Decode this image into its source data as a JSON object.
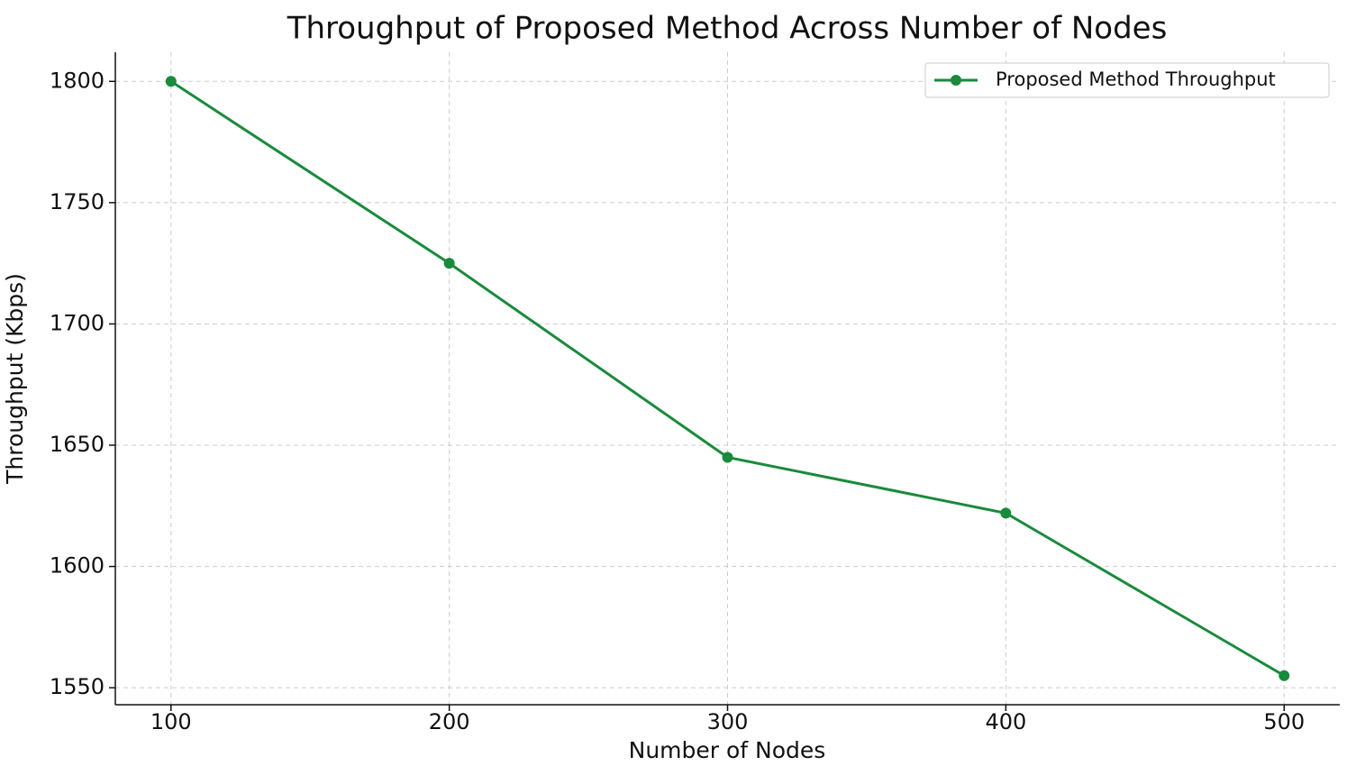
{
  "chart_data": {
    "type": "line",
    "title": "Throughput of Proposed Method Across Number of Nodes",
    "x_label": "Number of Nodes",
    "y_label": "Throughput (Kbps)",
    "x": [
      100,
      200,
      300,
      400,
      500
    ],
    "series": [
      {
        "name": "Proposed Method Throughput",
        "color": "#1a8a3c",
        "values": [
          1800,
          1725,
          1645,
          1622,
          1555
        ]
      }
    ],
    "xlim": [
      80,
      520
    ],
    "ylim": [
      1543,
      1812
    ],
    "xticks": [
      100,
      200,
      300,
      400,
      500
    ],
    "yticks": [
      1550,
      1600,
      1650,
      1700,
      1750,
      1800
    ],
    "grid": true,
    "legend": "upper right"
  }
}
